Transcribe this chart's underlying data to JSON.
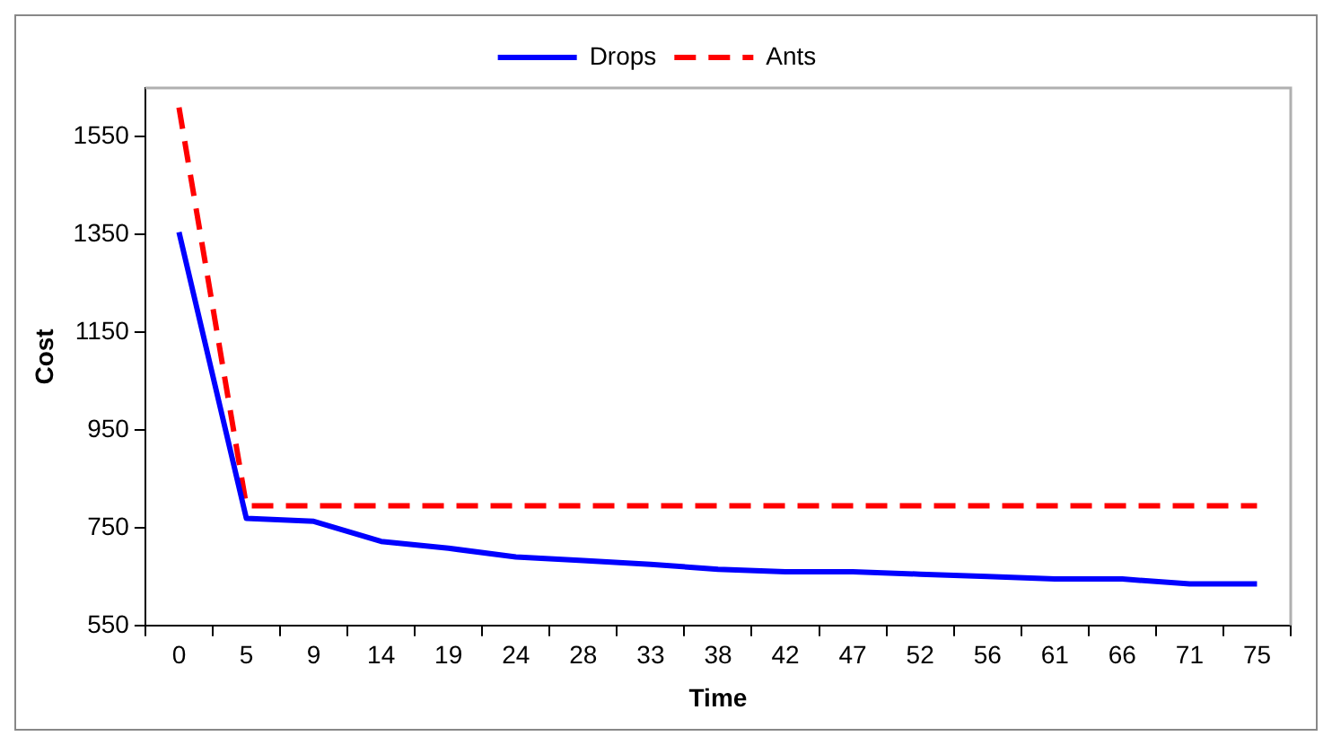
{
  "chart_data": {
    "type": "line",
    "xlabel": "Time",
    "ylabel": "Cost",
    "categories": [
      "0",
      "5",
      "9",
      "14",
      "19",
      "24",
      "28",
      "33",
      "38",
      "42",
      "47",
      "52",
      "56",
      "61",
      "66",
      "71",
      "75"
    ],
    "series": [
      {
        "name": "Drops",
        "color": "#0000ff",
        "line_style": "solid",
        "values": [
          1355,
          769,
          763,
          722,
          708,
          690,
          683,
          675,
          665,
          660,
          660,
          655,
          650,
          645,
          645,
          635,
          635
        ]
      },
      {
        "name": "Ants",
        "color": "#ff0000",
        "line_style": "dashed",
        "values": [
          1610,
          795,
          795,
          795,
          795,
          795,
          795,
          795,
          795,
          795,
          795,
          795,
          795,
          795,
          795,
          795,
          795
        ]
      }
    ],
    "ylim": [
      550,
      1650
    ],
    "yticks": [
      550,
      750,
      950,
      1150,
      1350,
      1550
    ],
    "grid": false,
    "legend": "top",
    "marker": "none"
  }
}
